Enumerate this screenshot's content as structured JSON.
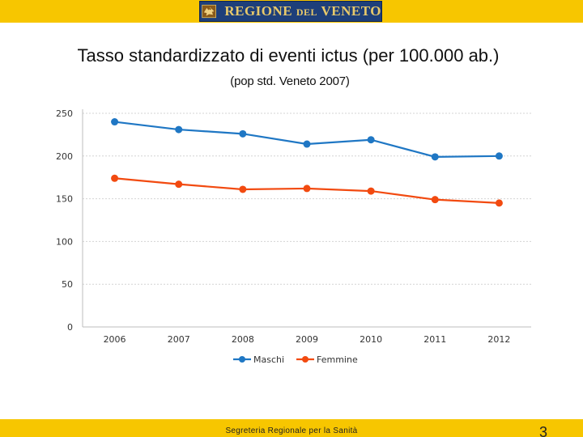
{
  "header": {
    "logo_main": "REGIONE ",
    "logo_small": "DEL",
    "logo_end": " VENETO",
    "logo_icon": "winged-lion-icon",
    "bar_color": "#f7c600",
    "logo_color": "#1e3f7a"
  },
  "slide": {
    "title": "Tasso standardizzato di eventi ictus (per 100.000 ab.)",
    "subtitle": "(pop std. Veneto 2007)"
  },
  "chart_data": {
    "type": "line",
    "title": "",
    "xlabel": "",
    "ylabel": "",
    "categories": [
      "2006",
      "2007",
      "2008",
      "2009",
      "2010",
      "2011",
      "2012"
    ],
    "ylim": [
      0,
      250
    ],
    "yticks": [
      0,
      50,
      100,
      150,
      200,
      250
    ],
    "grid": true,
    "legend_position": "bottom",
    "series": [
      {
        "name": "Maschi",
        "color": "#1f77c4",
        "values": [
          240,
          231,
          226,
          214,
          219,
          199,
          200
        ]
      },
      {
        "name": "Femmine",
        "color": "#f24a10",
        "values": [
          174,
          167,
          161,
          162,
          159,
          149,
          145
        ]
      }
    ]
  },
  "footer": {
    "text": "Segreteria Regionale per la Sanità",
    "page_number": "3"
  }
}
